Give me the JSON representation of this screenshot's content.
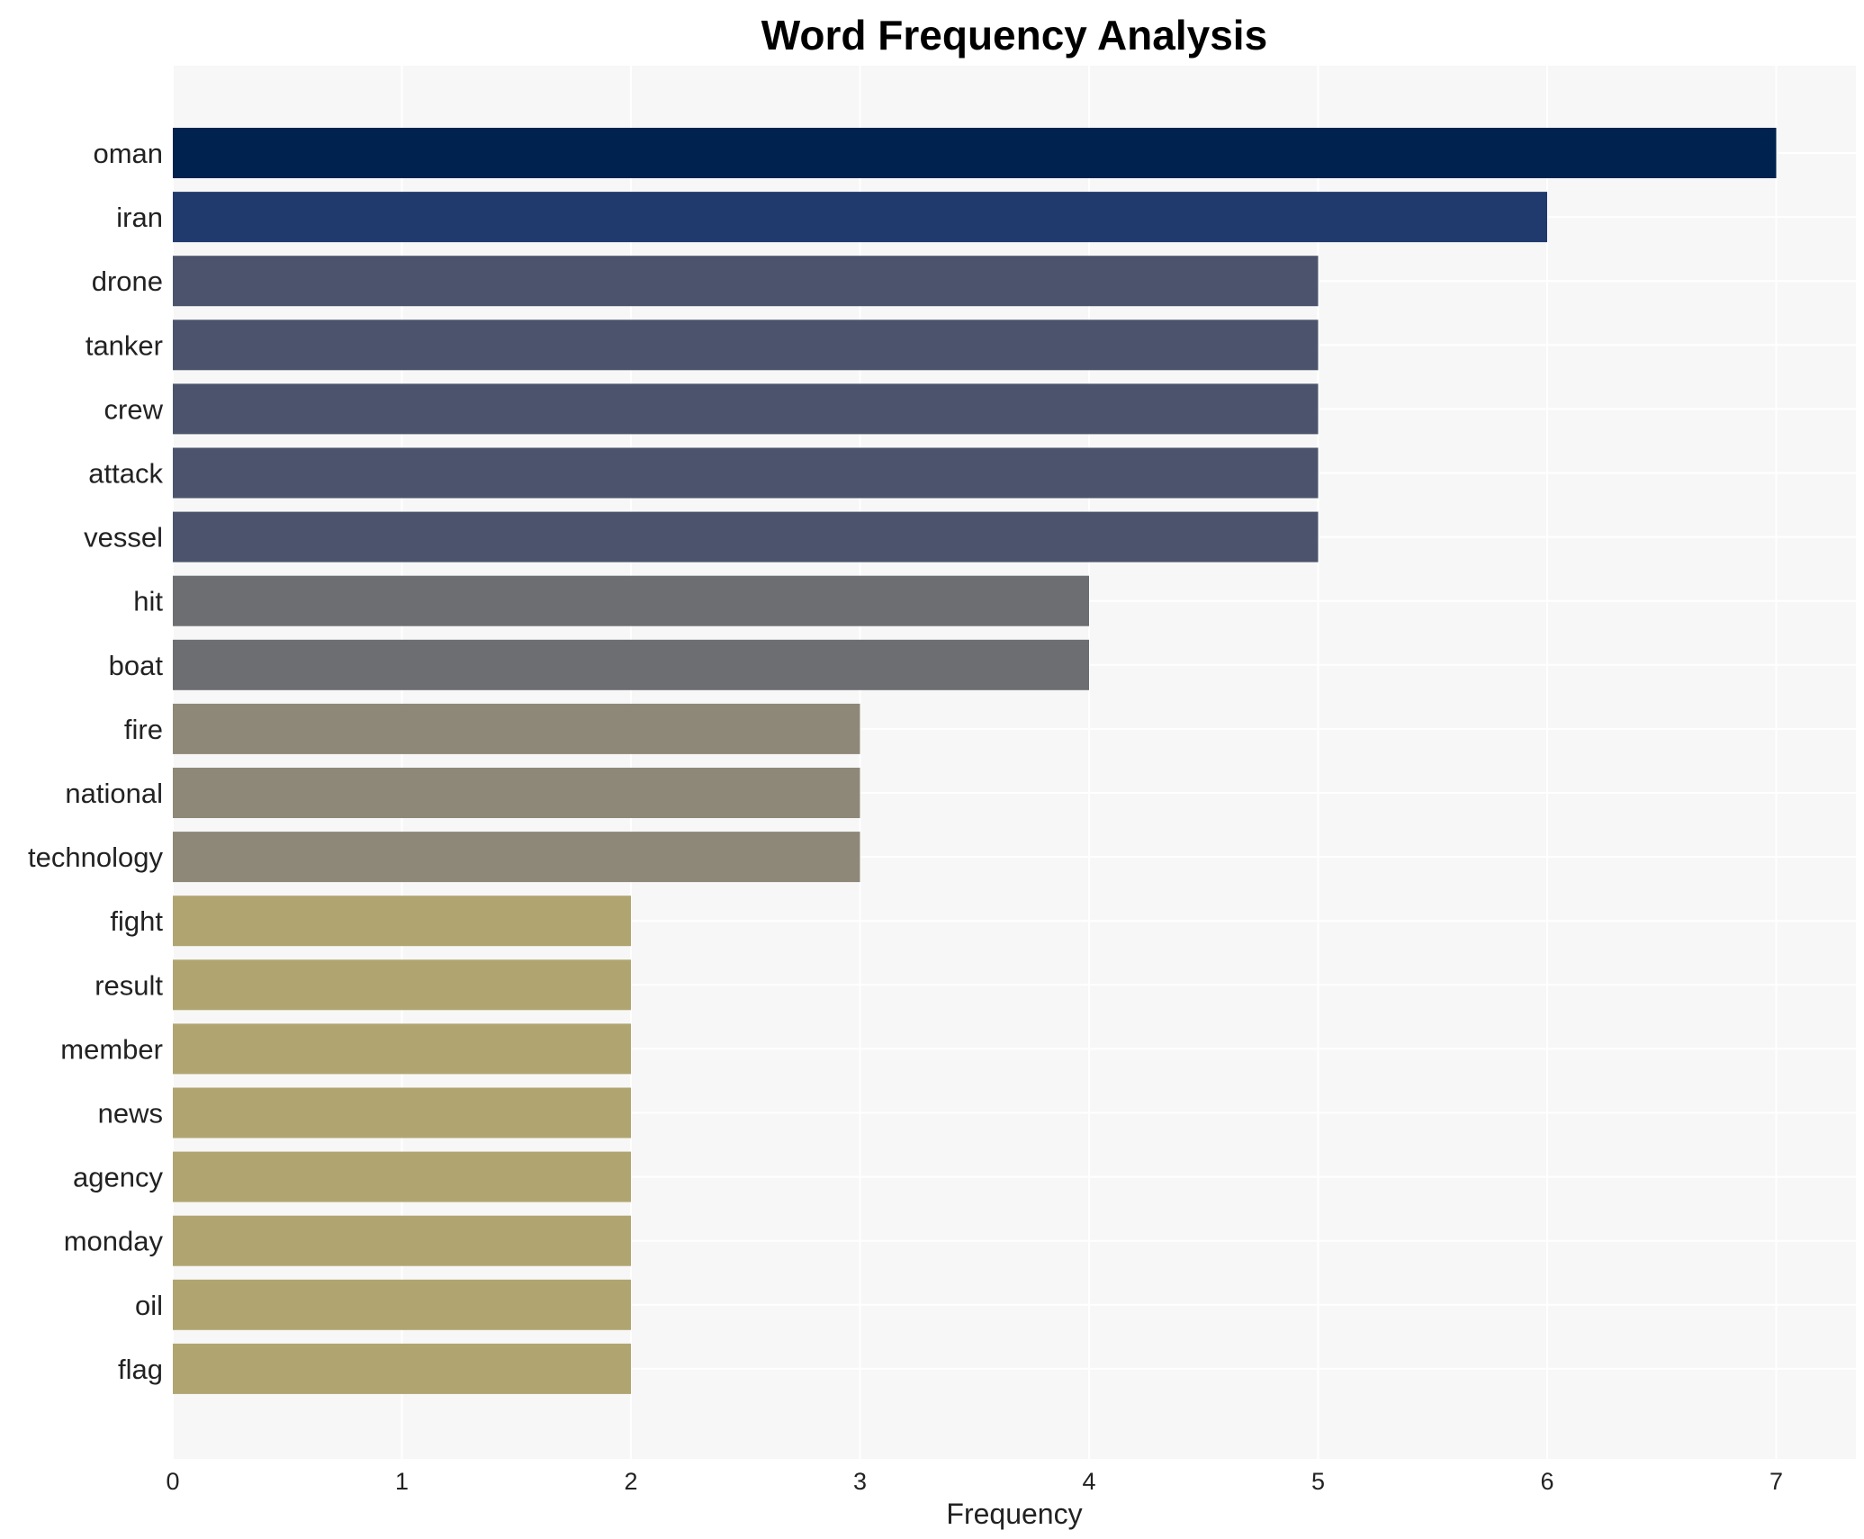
{
  "chart_data": {
    "type": "bar",
    "orientation": "horizontal",
    "title": "Word Frequency Analysis",
    "xlabel": "Frequency",
    "ylabel": "",
    "xlim": [
      0,
      7.35
    ],
    "xticks": [
      "0",
      "1",
      "2",
      "3",
      "4",
      "5",
      "6",
      "7"
    ],
    "grid": true,
    "categories": [
      "oman",
      "iran",
      "drone",
      "tanker",
      "crew",
      "attack",
      "vessel",
      "hit",
      "boat",
      "fire",
      "national",
      "technology",
      "fight",
      "result",
      "member",
      "news",
      "agency",
      "monday",
      "oil",
      "flag"
    ],
    "values": [
      7,
      6,
      5,
      5,
      5,
      5,
      5,
      4,
      4,
      3,
      3,
      3,
      2,
      2,
      2,
      2,
      2,
      2,
      2,
      2
    ],
    "colors": [
      "#00224e",
      "#213a6e",
      "#4b546c",
      "#4b546c",
      "#4b546c",
      "#4b546c",
      "#4b546c",
      "#6c6e72",
      "#6c6e72",
      "#8e8878",
      "#8e8878",
      "#8e8878",
      "#b0a570",
      "#b0a570",
      "#b0a570",
      "#b0a570",
      "#b0a570",
      "#b0a570",
      "#b0a570",
      "#b0a570"
    ],
    "background_color": "#f7f7f7",
    "grid_color": "#ffffff"
  }
}
